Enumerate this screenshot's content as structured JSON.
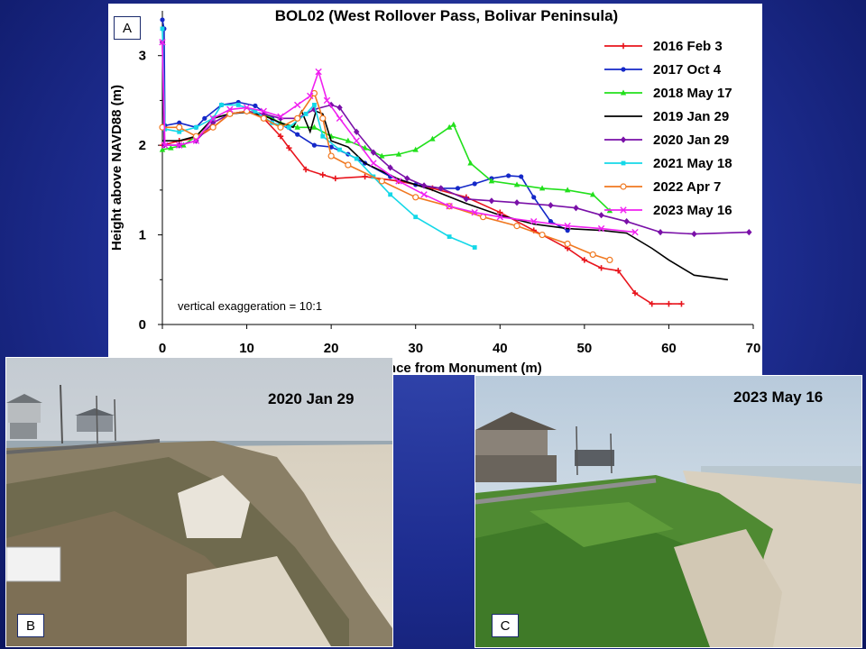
{
  "panels": {
    "a_letter": "A",
    "b_letter": "B",
    "c_letter": "C",
    "b_date": "2020 Jan 29",
    "c_date": "2023 May 16"
  },
  "chart_data": {
    "type": "line",
    "title": "BOL02 (West Rollover Pass, Bolivar Peninsula)",
    "xlabel": "Distance from Monument (m)",
    "ylabel": "Height above NAVD88 (m)",
    "xlim": [
      0,
      70
    ],
    "ylim": [
      0,
      3.5
    ],
    "xticks": [
      0,
      10,
      20,
      30,
      40,
      50,
      60,
      70
    ],
    "yticks": [
      0,
      1,
      2,
      3
    ],
    "annotation": "vertical exaggeration = 10:1",
    "legend_position": "top-right",
    "series": [
      {
        "name": "2016 Feb 3",
        "color": "#e8141c",
        "marker": "plus",
        "points": [
          [
            0,
            2.0
          ],
          [
            2,
            2.05
          ],
          [
            4,
            2.08
          ],
          [
            6,
            2.2
          ],
          [
            8,
            2.35
          ],
          [
            10,
            2.38
          ],
          [
            12,
            2.3
          ],
          [
            14,
            2.1
          ],
          [
            15,
            1.97
          ],
          [
            17,
            1.73
          ],
          [
            19,
            1.67
          ],
          [
            20.5,
            1.63
          ],
          [
            24,
            1.65
          ],
          [
            28,
            1.6
          ],
          [
            32,
            1.52
          ],
          [
            36,
            1.42
          ],
          [
            40,
            1.25
          ],
          [
            44,
            1.05
          ],
          [
            48,
            0.85
          ],
          [
            50,
            0.72
          ],
          [
            52,
            0.63
          ],
          [
            54,
            0.6
          ],
          [
            56,
            0.35
          ],
          [
            58,
            0.23
          ],
          [
            60,
            0.23
          ],
          [
            61.5,
            0.23
          ]
        ]
      },
      {
        "name": "2017 Oct 4",
        "color": "#1428c8",
        "marker": "circle",
        "points": [
          [
            0,
            3.4
          ],
          [
            0.2,
            3.3
          ],
          [
            0.3,
            2.22
          ],
          [
            2,
            2.25
          ],
          [
            4,
            2.2
          ],
          [
            5,
            2.3
          ],
          [
            7,
            2.45
          ],
          [
            9,
            2.48
          ],
          [
            11,
            2.44
          ],
          [
            13,
            2.3
          ],
          [
            16,
            2.12
          ],
          [
            18,
            2.0
          ],
          [
            20,
            1.98
          ],
          [
            22,
            1.9
          ],
          [
            24,
            1.8
          ],
          [
            27,
            1.65
          ],
          [
            30,
            1.56
          ],
          [
            33,
            1.52
          ],
          [
            35,
            1.52
          ],
          [
            37,
            1.57
          ],
          [
            39,
            1.63
          ],
          [
            41,
            1.66
          ],
          [
            42.5,
            1.65
          ],
          [
            44,
            1.42
          ],
          [
            46,
            1.15
          ],
          [
            48,
            1.05
          ]
        ]
      },
      {
        "name": "2018 May 17",
        "color": "#22e01c",
        "marker": "triangle",
        "points": [
          [
            0,
            1.95
          ],
          [
            1,
            1.97
          ],
          [
            2.5,
            2.0
          ],
          [
            4,
            2.1
          ],
          [
            6,
            2.3
          ],
          [
            8,
            2.35
          ],
          [
            10,
            2.38
          ],
          [
            12,
            2.35
          ],
          [
            14,
            2.25
          ],
          [
            16,
            2.2
          ],
          [
            18,
            2.2
          ],
          [
            20,
            2.1
          ],
          [
            22,
            2.05
          ],
          [
            24,
            1.97
          ],
          [
            26,
            1.88
          ],
          [
            28,
            1.9
          ],
          [
            30,
            1.95
          ],
          [
            32,
            2.07
          ],
          [
            34,
            2.2
          ],
          [
            34.5,
            2.23
          ],
          [
            36.5,
            1.8
          ],
          [
            39,
            1.6
          ],
          [
            42,
            1.56
          ],
          [
            45,
            1.52
          ],
          [
            48,
            1.5
          ],
          [
            51,
            1.45
          ],
          [
            53,
            1.27
          ]
        ]
      },
      {
        "name": "2019 Jan 29",
        "color": "#000000",
        "marker": "none",
        "points": [
          [
            0,
            2.05
          ],
          [
            2,
            2.05
          ],
          [
            4,
            2.1
          ],
          [
            6,
            2.3
          ],
          [
            8,
            2.35
          ],
          [
            10,
            2.37
          ],
          [
            12,
            2.33
          ],
          [
            14,
            2.25
          ],
          [
            15.5,
            2.2
          ],
          [
            16.5,
            2.38
          ],
          [
            17.5,
            2.15
          ],
          [
            18.2,
            2.38
          ],
          [
            19,
            2.35
          ],
          [
            20,
            2.05
          ],
          [
            22,
            1.98
          ],
          [
            24,
            1.8
          ],
          [
            28,
            1.62
          ],
          [
            32,
            1.5
          ],
          [
            36,
            1.35
          ],
          [
            40,
            1.22
          ],
          [
            44,
            1.12
          ],
          [
            48,
            1.07
          ],
          [
            52,
            1.05
          ],
          [
            55,
            1.02
          ],
          [
            58,
            0.85
          ],
          [
            60,
            0.72
          ],
          [
            63,
            0.55
          ],
          [
            67,
            0.5
          ]
        ]
      },
      {
        "name": "2020 Jan 29",
        "color": "#7a10a8",
        "marker": "diamond",
        "points": [
          [
            0,
            3.15
          ],
          [
            0.2,
            2.0
          ],
          [
            2,
            2.0
          ],
          [
            4,
            2.05
          ],
          [
            6,
            2.25
          ],
          [
            8,
            2.35
          ],
          [
            10,
            2.38
          ],
          [
            12,
            2.35
          ],
          [
            14,
            2.3
          ],
          [
            16,
            2.3
          ],
          [
            18,
            2.4
          ],
          [
            20,
            2.45
          ],
          [
            21,
            2.42
          ],
          [
            23,
            2.15
          ],
          [
            25,
            1.92
          ],
          [
            27,
            1.75
          ],
          [
            29,
            1.63
          ],
          [
            31,
            1.55
          ],
          [
            33,
            1.52
          ],
          [
            36,
            1.4
          ],
          [
            39,
            1.38
          ],
          [
            42,
            1.36
          ],
          [
            46,
            1.33
          ],
          [
            49,
            1.3
          ],
          [
            52,
            1.22
          ],
          [
            55,
            1.15
          ],
          [
            59,
            1.03
          ],
          [
            63,
            1.01
          ],
          [
            69.5,
            1.03
          ]
        ]
      },
      {
        "name": "2021 May 18",
        "color": "#14d8e8",
        "marker": "square",
        "points": [
          [
            0,
            3.3
          ],
          [
            0.3,
            2.18
          ],
          [
            2,
            2.15
          ],
          [
            4,
            2.2
          ],
          [
            6,
            2.3
          ],
          [
            7,
            2.45
          ],
          [
            9,
            2.45
          ],
          [
            11,
            2.38
          ],
          [
            13,
            2.25
          ],
          [
            15,
            2.2
          ],
          [
            17,
            2.35
          ],
          [
            18,
            2.45
          ],
          [
            19,
            2.1
          ],
          [
            21,
            1.95
          ],
          [
            23,
            1.85
          ],
          [
            25,
            1.65
          ],
          [
            27,
            1.45
          ],
          [
            30,
            1.2
          ],
          [
            34,
            0.98
          ],
          [
            37,
            0.86
          ]
        ]
      },
      {
        "name": "2022 Apr 7",
        "color": "#f07820",
        "marker": "open-circle",
        "points": [
          [
            0,
            2.2
          ],
          [
            2,
            2.2
          ],
          [
            4,
            2.1
          ],
          [
            6,
            2.2
          ],
          [
            8,
            2.35
          ],
          [
            10,
            2.38
          ],
          [
            12,
            2.3
          ],
          [
            14,
            2.2
          ],
          [
            16,
            2.3
          ],
          [
            18,
            2.58
          ],
          [
            19,
            2.3
          ],
          [
            20,
            1.88
          ],
          [
            22,
            1.78
          ],
          [
            26,
            1.6
          ],
          [
            30,
            1.42
          ],
          [
            34,
            1.32
          ],
          [
            38,
            1.2
          ],
          [
            42,
            1.1
          ],
          [
            45,
            1.0
          ],
          [
            48,
            0.9
          ],
          [
            51,
            0.78
          ],
          [
            53,
            0.72
          ]
        ]
      },
      {
        "name": "2023 May 16",
        "color": "#f020f0",
        "marker": "x",
        "points": [
          [
            0,
            3.15
          ],
          [
            0.3,
            2.0
          ],
          [
            2,
            2.0
          ],
          [
            4,
            2.05
          ],
          [
            6,
            2.3
          ],
          [
            8,
            2.4
          ],
          [
            10,
            2.42
          ],
          [
            12,
            2.38
          ],
          [
            14,
            2.32
          ],
          [
            16,
            2.45
          ],
          [
            17.5,
            2.55
          ],
          [
            18.5,
            2.82
          ],
          [
            19.5,
            2.5
          ],
          [
            21,
            2.3
          ],
          [
            23,
            2.05
          ],
          [
            25,
            1.8
          ],
          [
            28,
            1.6
          ],
          [
            31,
            1.45
          ],
          [
            34,
            1.32
          ],
          [
            37,
            1.25
          ],
          [
            40,
            1.2
          ],
          [
            44,
            1.15
          ],
          [
            48,
            1.1
          ],
          [
            52,
            1.07
          ],
          [
            56,
            1.03
          ]
        ]
      }
    ]
  }
}
